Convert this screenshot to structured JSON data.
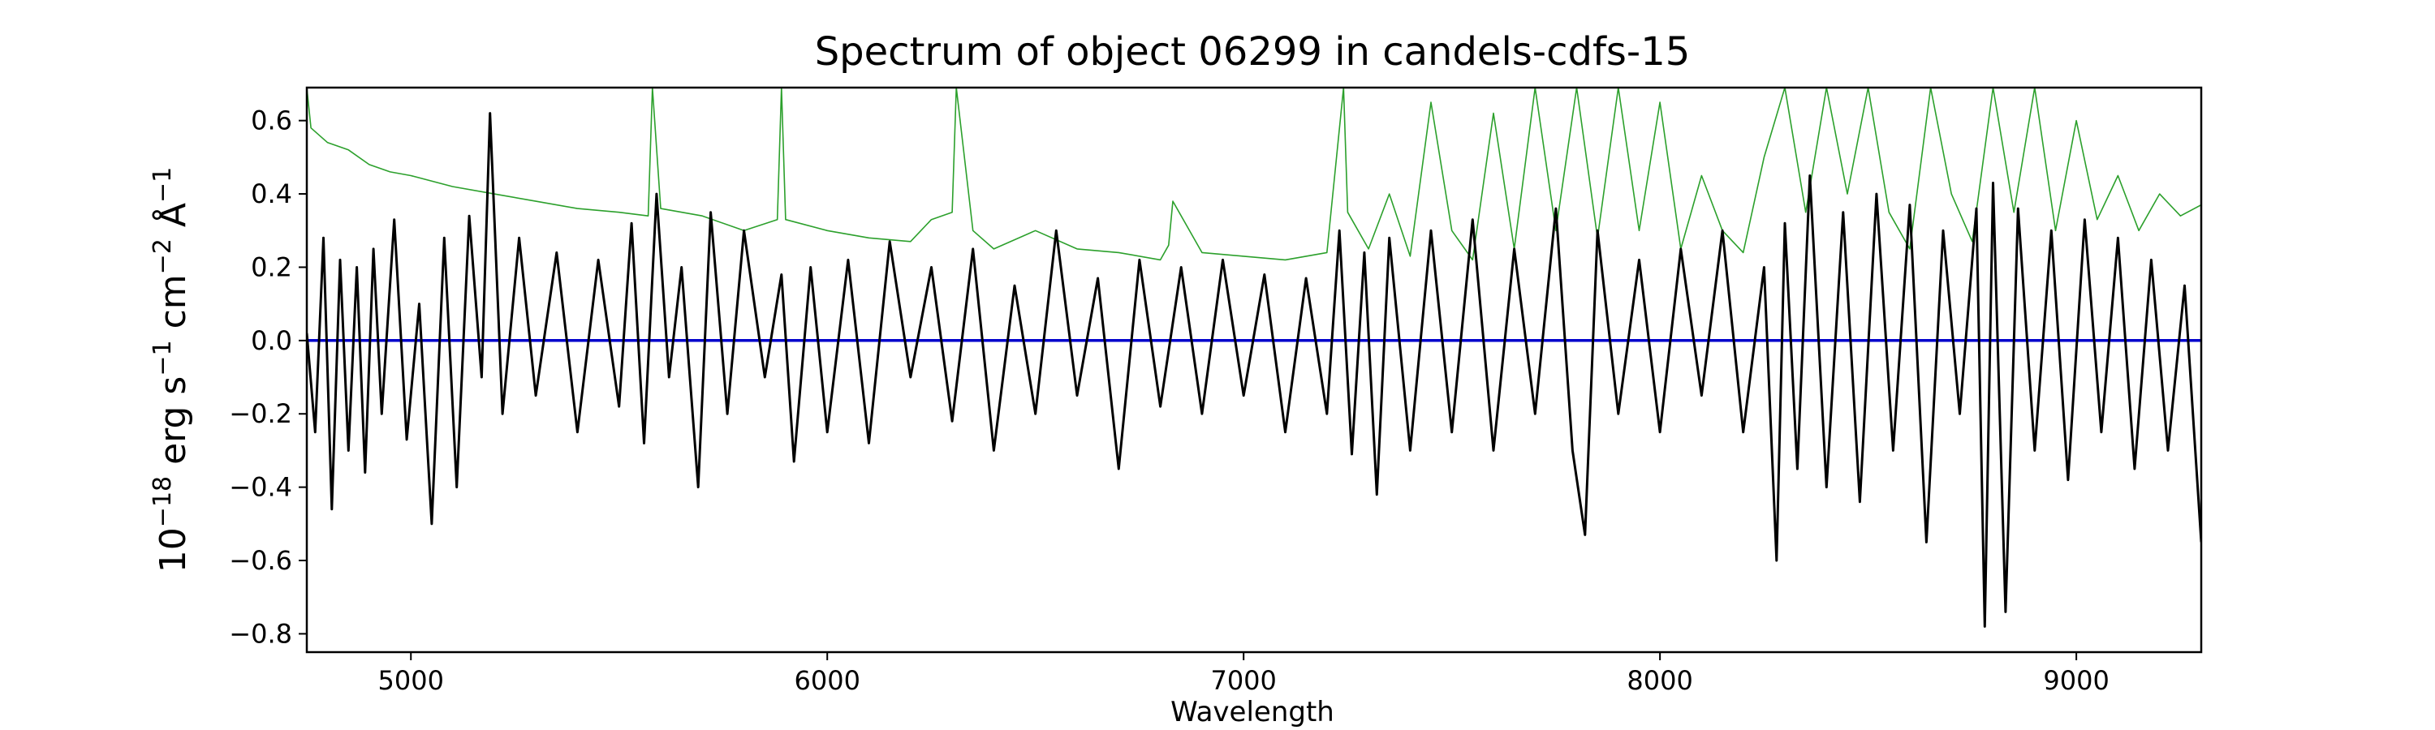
{
  "chart_data": {
    "type": "line",
    "title": "Spectrum of object 06299 in candels-cdfs-15",
    "xlabel": "Wavelength",
    "ylabel": {
      "base": "10",
      "exp1": "−18",
      "part1": " erg s",
      "exp2": "−1",
      "part2": " cm",
      "exp3": "−2",
      "part3": " Å",
      "exp4": "−1"
    },
    "xlim": [
      4750,
      9300
    ],
    "ylim": [
      -0.85,
      0.69
    ],
    "x_ticks": [
      5000,
      6000,
      7000,
      8000,
      9000
    ],
    "x_tick_labels": [
      "5000",
      "6000",
      "7000",
      "8000",
      "9000"
    ],
    "y_ticks": [
      -0.8,
      -0.6,
      -0.4,
      -0.2,
      0.0,
      0.2,
      0.4,
      0.6
    ],
    "y_tick_labels": [
      "−0.8",
      "−0.6",
      "−0.4",
      "−0.2",
      "0.0",
      "0.2",
      "0.4",
      "0.6"
    ],
    "grid": false,
    "colors": {
      "flux": "#000000",
      "noise": "#2ca02c",
      "zero_line": "#0000cc"
    },
    "series": [
      {
        "key": "flux",
        "x": [
          4750,
          4770,
          4790,
          4810,
          4830,
          4850,
          4870,
          4890,
          4910,
          4930,
          4960,
          4990,
          5020,
          5050,
          5080,
          5110,
          5140,
          5170,
          5190,
          5220,
          5260,
          5300,
          5350,
          5400,
          5450,
          5500,
          5530,
          5560,
          5590,
          5620,
          5650,
          5690,
          5720,
          5760,
          5800,
          5850,
          5890,
          5920,
          5960,
          6000,
          6050,
          6100,
          6150,
          6200,
          6250,
          6300,
          6350,
          6400,
          6450,
          6500,
          6550,
          6600,
          6650,
          6700,
          6750,
          6800,
          6850,
          6900,
          6950,
          7000,
          7050,
          7100,
          7150,
          7200,
          7230,
          7260,
          7290,
          7320,
          7350,
          7400,
          7450,
          7500,
          7550,
          7600,
          7650,
          7700,
          7750,
          7790,
          7820,
          7850,
          7900,
          7950,
          8000,
          8050,
          8100,
          8150,
          8200,
          8250,
          8280,
          8300,
          8330,
          8360,
          8400,
          8440,
          8480,
          8520,
          8560,
          8600,
          8640,
          8680,
          8720,
          8760,
          8780,
          8800,
          8830,
          8860,
          8900,
          8940,
          8980,
          9020,
          9060,
          9100,
          9140,
          9180,
          9220,
          9260,
          9300
        ],
        "y": [
          0.02,
          -0.25,
          0.28,
          -0.46,
          0.22,
          -0.3,
          0.2,
          -0.36,
          0.25,
          -0.2,
          0.33,
          -0.27,
          0.1,
          -0.5,
          0.28,
          -0.4,
          0.34,
          -0.1,
          0.62,
          -0.2,
          0.28,
          -0.15,
          0.24,
          -0.25,
          0.22,
          -0.18,
          0.32,
          -0.28,
          0.4,
          -0.1,
          0.2,
          -0.4,
          0.35,
          -0.2,
          0.3,
          -0.1,
          0.18,
          -0.33,
          0.2,
          -0.25,
          0.22,
          -0.28,
          0.27,
          -0.1,
          0.2,
          -0.22,
          0.25,
          -0.3,
          0.15,
          -0.2,
          0.3,
          -0.15,
          0.17,
          -0.35,
          0.22,
          -0.18,
          0.2,
          -0.2,
          0.22,
          -0.15,
          0.18,
          -0.25,
          0.17,
          -0.2,
          0.3,
          -0.31,
          0.24,
          -0.42,
          0.28,
          -0.3,
          0.3,
          -0.25,
          0.33,
          -0.3,
          0.25,
          -0.2,
          0.36,
          -0.3,
          -0.53,
          0.3,
          -0.2,
          0.22,
          -0.25,
          0.25,
          -0.15,
          0.3,
          -0.25,
          0.2,
          -0.6,
          0.32,
          -0.35,
          0.45,
          -0.4,
          0.35,
          -0.44,
          0.4,
          -0.3,
          0.37,
          -0.55,
          0.3,
          -0.2,
          0.36,
          -0.78,
          0.43,
          -0.74,
          0.36,
          -0.3,
          0.3,
          -0.38,
          0.33,
          -0.25,
          0.28,
          -0.35,
          0.22,
          -0.3,
          0.15,
          -0.55
        ]
      },
      {
        "key": "noise",
        "x": [
          4750,
          4760,
          4780,
          4800,
          4850,
          4900,
          4950,
          5000,
          5100,
          5200,
          5300,
          5400,
          5500,
          5570,
          5580,
          5600,
          5700,
          5800,
          5880,
          5890,
          5900,
          6000,
          6100,
          6200,
          6250,
          6300,
          6310,
          6350,
          6400,
          6500,
          6600,
          6700,
          6800,
          6820,
          6830,
          6900,
          7000,
          7100,
          7200,
          7240,
          7250,
          7300,
          7350,
          7400,
          7450,
          7500,
          7550,
          7600,
          7650,
          7700,
          7750,
          7800,
          7850,
          7900,
          7950,
          8000,
          8050,
          8100,
          8150,
          8200,
          8250,
          8300,
          8350,
          8400,
          8450,
          8500,
          8550,
          8600,
          8650,
          8700,
          8750,
          8800,
          8850,
          8900,
          8950,
          9000,
          9050,
          9100,
          9150,
          9200,
          9250,
          9300
        ],
        "y": [
          0.69,
          0.58,
          0.56,
          0.54,
          0.52,
          0.48,
          0.46,
          0.45,
          0.42,
          0.4,
          0.38,
          0.36,
          0.35,
          0.34,
          0.69,
          0.36,
          0.34,
          0.3,
          0.33,
          0.69,
          0.33,
          0.3,
          0.28,
          0.27,
          0.33,
          0.35,
          0.69,
          0.3,
          0.25,
          0.3,
          0.25,
          0.24,
          0.22,
          0.26,
          0.38,
          0.24,
          0.23,
          0.22,
          0.24,
          0.69,
          0.35,
          0.25,
          0.4,
          0.23,
          0.65,
          0.3,
          0.22,
          0.62,
          0.25,
          0.69,
          0.3,
          0.69,
          0.28,
          0.69,
          0.3,
          0.65,
          0.25,
          0.45,
          0.3,
          0.24,
          0.5,
          0.69,
          0.35,
          0.69,
          0.4,
          0.69,
          0.35,
          0.25,
          0.69,
          0.4,
          0.27,
          0.69,
          0.35,
          0.69,
          0.3,
          0.6,
          0.33,
          0.45,
          0.3,
          0.4,
          0.34,
          0.37
        ]
      },
      {
        "key": "zero_line",
        "x": [
          4750,
          9300
        ],
        "y": [
          0.0,
          0.0
        ]
      }
    ]
  }
}
